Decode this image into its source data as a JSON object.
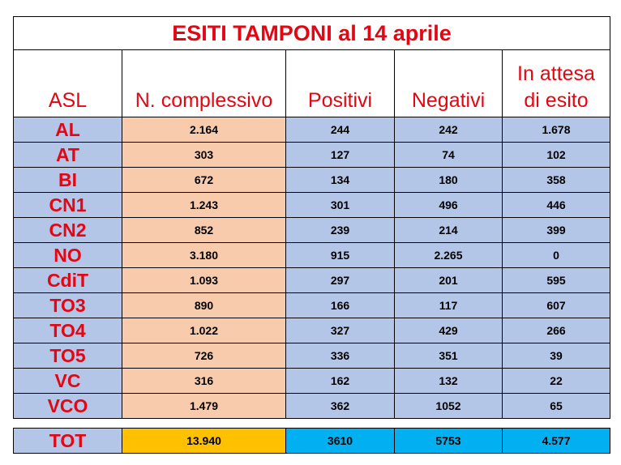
{
  "chart_data": {
    "type": "table",
    "title": "ESITI TAMPONI al 14 aprile",
    "columns": [
      "ASL",
      "N. complessivo",
      "Positivi",
      "Negativi",
      "In attesa di esito"
    ],
    "rows": [
      [
        "AL",
        "2.164",
        "244",
        "242",
        "1.678"
      ],
      [
        "AT",
        "303",
        "127",
        "74",
        "102"
      ],
      [
        "BI",
        "672",
        "134",
        "180",
        "358"
      ],
      [
        "CN1",
        "1.243",
        "301",
        "496",
        "446"
      ],
      [
        "CN2",
        "852",
        "239",
        "214",
        "399"
      ],
      [
        "NO",
        "3.180",
        "915",
        "2.265",
        "0"
      ],
      [
        "CdiT",
        "1.093",
        "297",
        "201",
        "595"
      ],
      [
        "TO3",
        "890",
        "166",
        "117",
        "607"
      ],
      [
        "TO4",
        "1.022",
        "327",
        "429",
        "266"
      ],
      [
        "TO5",
        "726",
        "336",
        "351",
        "39"
      ],
      [
        "VC",
        "316",
        "162",
        "132",
        "22"
      ],
      [
        "VCO",
        "1.479",
        "362",
        "1052",
        "65"
      ]
    ],
    "total": [
      "TOT",
      "13.940",
      "3610",
      "5753",
      "4.577"
    ],
    "colors": {
      "text_red": "#e30613",
      "row_blue": "#b4c6e7",
      "complessivo_peach": "#f8cbad",
      "total_orange": "#ffc000",
      "total_cyan": "#00b0f0"
    }
  }
}
